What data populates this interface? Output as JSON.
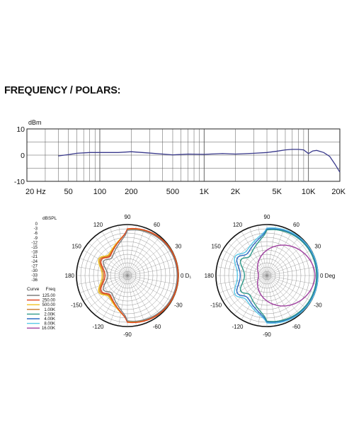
{
  "heading": "FREQUENCY / POLARS:",
  "chart_data": [
    {
      "type": "line",
      "ylabel": "dBm",
      "xscale": "log",
      "xlim": [
        20,
        20000
      ],
      "ylim": [
        -10,
        10
      ],
      "grid": true,
      "xticks": [
        {
          "v": 20,
          "label": "20  Hz"
        },
        {
          "v": 50,
          "label": "50"
        },
        {
          "v": 100,
          "label": "100"
        },
        {
          "v": 200,
          "label": "200"
        },
        {
          "v": 500,
          "label": "500"
        },
        {
          "v": 1000,
          "label": "1K"
        },
        {
          "v": 2000,
          "label": "2K"
        },
        {
          "v": 5000,
          "label": "5K"
        },
        {
          "v": 10000,
          "label": "10K"
        },
        {
          "v": 20000,
          "label": "20K"
        }
      ],
      "yticks": [
        {
          "v": 10,
          "label": "10"
        },
        {
          "v": 0,
          "label": "0"
        },
        {
          "v": -10,
          "label": "-10"
        }
      ],
      "series": [
        {
          "color": "#3a3a8c",
          "x": [
            40,
            50,
            60,
            80,
            100,
            150,
            200,
            300,
            400,
            500,
            700,
            1000,
            1500,
            2000,
            3000,
            4000,
            5000,
            6000,
            7000,
            8000,
            9000,
            10000,
            11000,
            12000,
            14000,
            16000,
            18000,
            20000
          ],
          "y": [
            -0.3,
            0.2,
            0.7,
            1.0,
            1.0,
            1.0,
            1.3,
            0.8,
            0.4,
            0.1,
            0.4,
            0.3,
            0.6,
            0.4,
            0.7,
            1.0,
            1.5,
            2.0,
            2.2,
            2.2,
            2.0,
            0.6,
            1.6,
            1.8,
            1.0,
            -0.5,
            -3.5,
            -6.5
          ]
        }
      ]
    },
    {
      "type": "polar",
      "rlim": [
        -36,
        0
      ],
      "rlabel": "dBSPL",
      "rticks": [
        "0",
        "-3",
        "-6",
        "-9",
        "-12",
        "-15",
        "-18",
        "-21",
        "-24",
        "-27",
        "-30",
        "-33",
        "-36"
      ],
      "angle_labels": [
        {
          "a": 90,
          "label": "90"
        },
        {
          "a": 60,
          "label": "60"
        },
        {
          "a": 30,
          "label": "30"
        },
        {
          "a": 0,
          "label": "0 D₁"
        },
        {
          "a": -30,
          "label": "-30"
        },
        {
          "a": -60,
          "label": "-60"
        },
        {
          "a": -90,
          "label": "-90"
        },
        {
          "a": -120,
          "label": "-120"
        },
        {
          "a": -150,
          "label": "-150"
        },
        {
          "a": 180,
          "label": "180"
        },
        {
          "a": 150,
          "label": "150"
        },
        {
          "a": 120,
          "label": "120"
        }
      ],
      "legend": {
        "title_curve": "Curve",
        "title_freq": "Freq",
        "entries": [
          {
            "freq": "125.00",
            "color": "#7f7f7f"
          },
          {
            "freq": "250.00",
            "color": "#e0401a"
          },
          {
            "freq": "500.00",
            "color": "#f0c020"
          },
          {
            "freq": "1.00K",
            "color": "#c87a2a"
          },
          {
            "freq": "2.00K",
            "color": "#2f9a8a"
          },
          {
            "freq": "4.00K",
            "color": "#2c6cc4"
          },
          {
            "freq": "8.00K",
            "color": "#58c8e8"
          },
          {
            "freq": "16.00K",
            "color": "#a040a0"
          }
        ]
      },
      "series": [
        {
          "color": "#c87a2a",
          "pattern": "cardioid",
          "front": 0.0,
          "rear": -21,
          "side": -3.2
        },
        {
          "color": "#f0c020",
          "pattern": "cardioid",
          "front": -0.6,
          "rear": -20,
          "side": -3.6
        },
        {
          "color": "#e0401a",
          "pattern": "cardioid",
          "front": -0.3,
          "rear": -22,
          "side": -3.0
        },
        {
          "color": "#7f7f7f",
          "pattern": "cardioid",
          "front": -0.9,
          "rear": -24,
          "side": -4.0
        }
      ]
    },
    {
      "type": "polar",
      "rlim": [
        -36,
        0
      ],
      "angle_labels": [
        {
          "a": 90,
          "label": "90"
        },
        {
          "a": 60,
          "label": "60"
        },
        {
          "a": 30,
          "label": "30"
        },
        {
          "a": 0,
          "label": "0 Deg"
        },
        {
          "a": -30,
          "label": "-30"
        },
        {
          "a": -60,
          "label": "-60"
        },
        {
          "a": -90,
          "label": "-90"
        },
        {
          "a": -120,
          "label": "-120"
        },
        {
          "a": -150,
          "label": "-150"
        },
        {
          "a": 180,
          "label": "180"
        },
        {
          "a": 150,
          "label": "150"
        },
        {
          "a": 120,
          "label": "120"
        }
      ],
      "series": [
        {
          "color": "#58c8e8",
          "pattern": "cardioid",
          "front": 0.0,
          "rear": -17,
          "side": -2.5
        },
        {
          "color": "#2c6cc4",
          "pattern": "cardioid",
          "front": -0.6,
          "rear": -19,
          "side": -3.2
        },
        {
          "color": "#2f9a8a",
          "pattern": "cardioid",
          "front": -1.0,
          "rear": -22,
          "side": -3.8
        },
        {
          "color": "#a040a0",
          "pattern": "narrow",
          "front": -2.0,
          "rear": -30,
          "side": -10
        }
      ]
    }
  ]
}
